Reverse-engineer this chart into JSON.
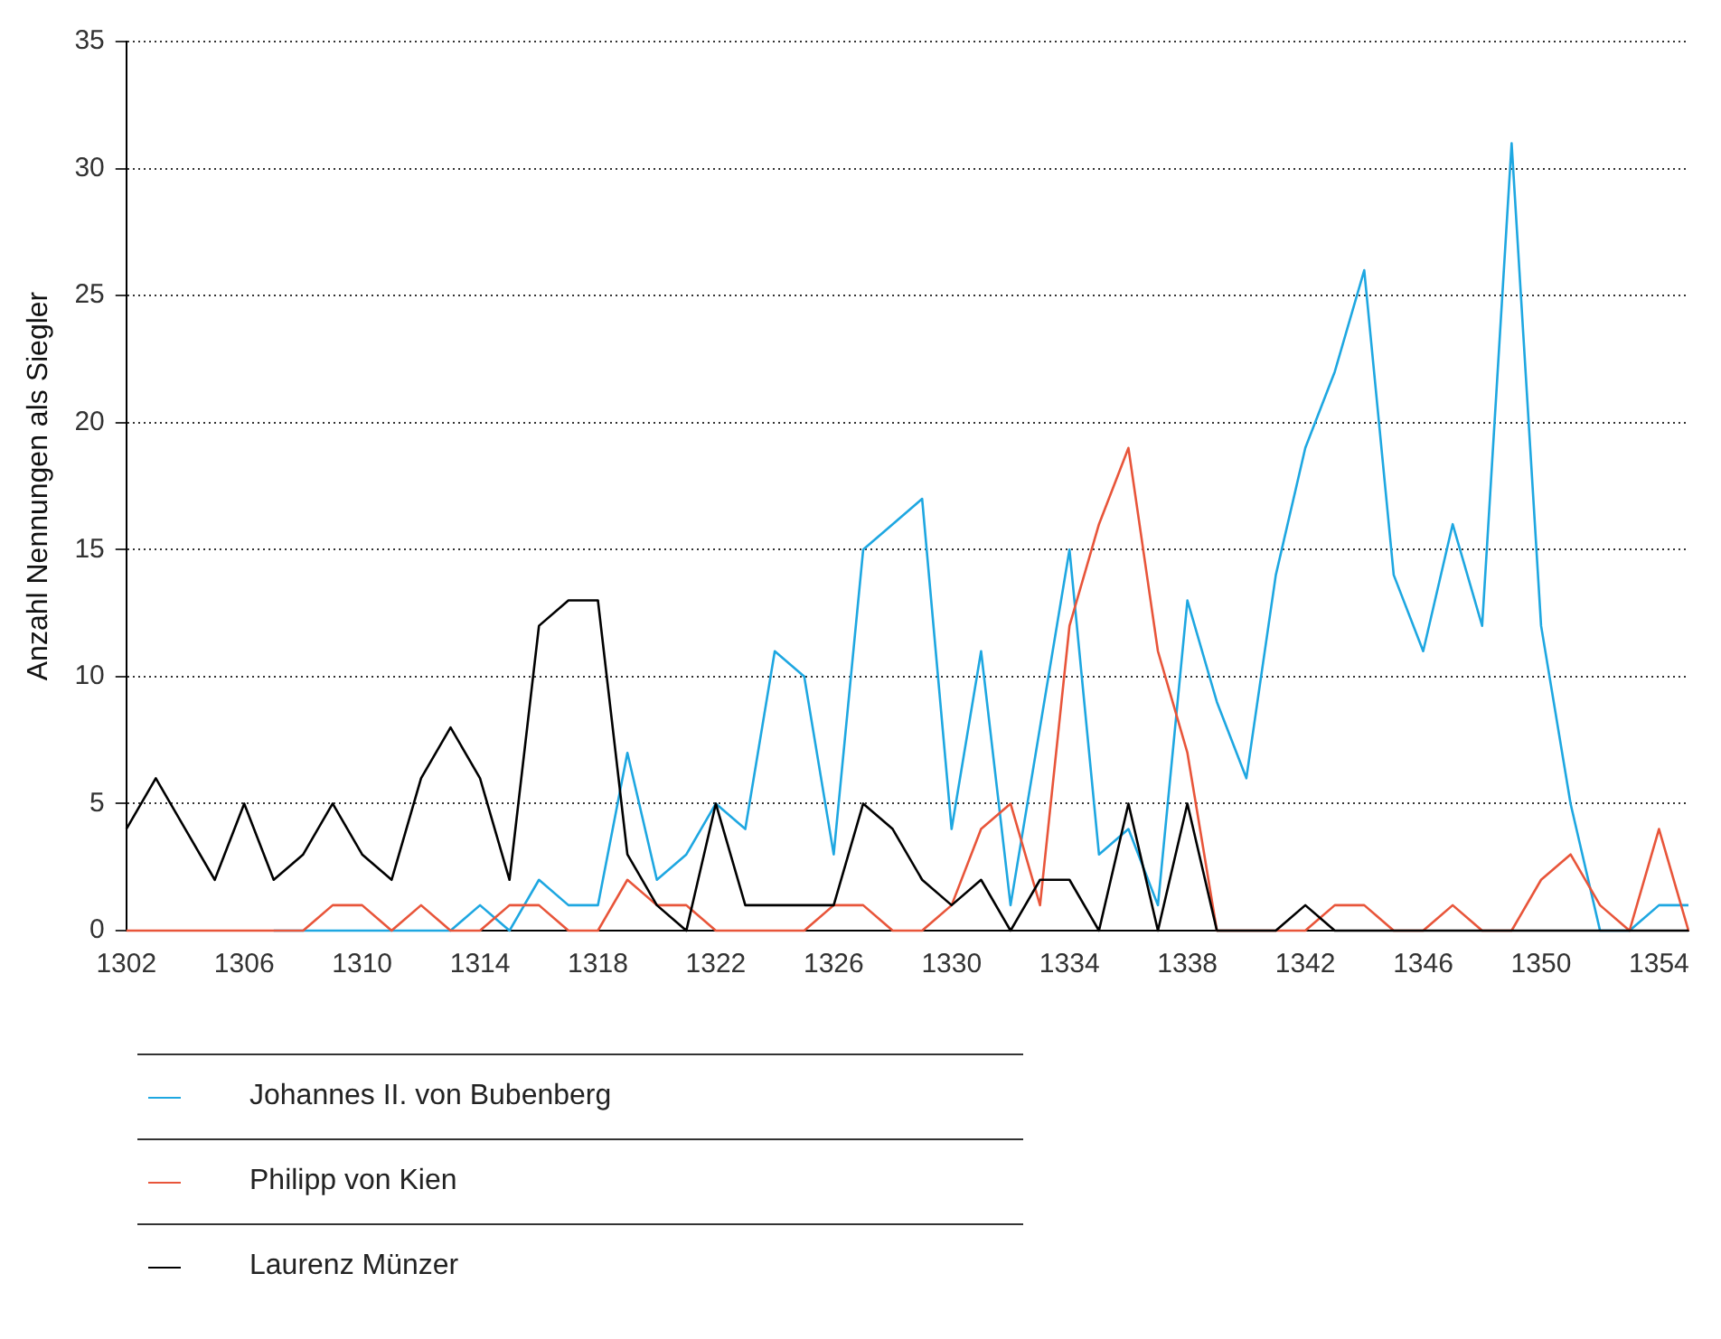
{
  "chart_data": {
    "type": "line",
    "ylabel": "Anzahl Nennungen als Siegler",
    "categories": [
      "1302",
      null,
      null,
      null,
      "1306",
      null,
      null,
      null,
      "1310",
      null,
      null,
      null,
      "1314",
      null,
      null,
      null,
      "1318",
      null,
      null,
      null,
      "1322",
      null,
      null,
      null,
      "1326",
      null,
      null,
      null,
      "1330",
      null,
      null,
      null,
      "1334",
      null,
      null,
      null,
      "1338",
      null,
      null,
      null,
      "1342",
      null,
      null,
      null,
      "1346",
      null,
      null,
      null,
      "1350",
      null,
      null,
      null,
      "1354",
      null
    ],
    "series": [
      {
        "name": "Johannes II. von Bubenberg",
        "color": "#1ea7e1",
        "values": [
          null,
          null,
          null,
          null,
          null,
          0,
          0,
          0,
          0,
          0,
          0,
          0,
          1,
          0,
          2,
          1,
          1,
          7,
          2,
          3,
          5,
          4,
          11,
          10,
          3,
          15,
          16,
          17,
          4,
          11,
          1,
          8,
          15,
          3,
          4,
          1,
          13,
          9,
          6,
          14,
          19,
          22,
          26,
          14,
          11,
          16,
          12,
          31,
          12,
          5,
          0,
          0,
          1,
          1
        ]
      },
      {
        "name": "Philipp von Kien",
        "color": "#e8553a",
        "values": [
          0,
          0,
          0,
          0,
          0,
          0,
          0,
          1,
          1,
          0,
          1,
          0,
          0,
          1,
          1,
          0,
          0,
          2,
          1,
          1,
          0,
          0,
          0,
          0,
          1,
          1,
          0,
          0,
          1,
          4,
          5,
          1,
          12,
          16,
          19,
          11,
          7,
          0,
          0,
          0,
          0,
          1,
          1,
          0,
          0,
          1,
          0,
          0,
          2,
          3,
          1,
          0,
          4,
          0
        ]
      },
      {
        "name": "Laurenz Münzer",
        "color": "#000000",
        "values": [
          4,
          6,
          4,
          2,
          5,
          2,
          3,
          5,
          3,
          2,
          6,
          8,
          6,
          2,
          12,
          13,
          13,
          3,
          1,
          0,
          5,
          1,
          1,
          1,
          1,
          5,
          4,
          2,
          1,
          2,
          0,
          2,
          2,
          0,
          5,
          0,
          5,
          0,
          0,
          0,
          1,
          0,
          0,
          0,
          0,
          0,
          0,
          0,
          0,
          0,
          0,
          0,
          0,
          0
        ]
      }
    ],
    "ylim": [
      0,
      35
    ],
    "yticks": [
      0,
      5,
      10,
      15,
      20,
      25,
      30,
      35
    ],
    "grid": "y",
    "legend": "bottom left",
    "marker": "none",
    "line_style": "solid"
  }
}
